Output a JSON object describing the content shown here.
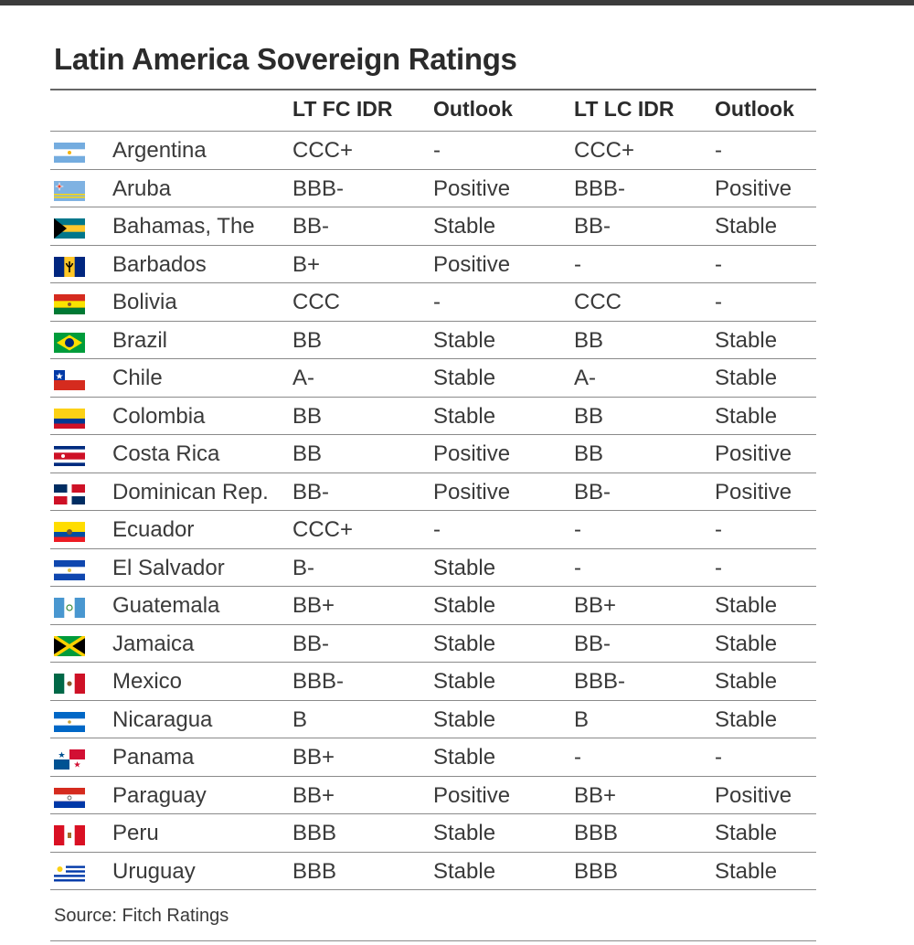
{
  "title": "Latin America Sovereign Ratings",
  "headers": [
    "LT FC IDR",
    "Outlook",
    "LT LC IDR",
    "Outlook"
  ],
  "rows": [
    {
      "flag": "argentina-flag-icon",
      "country": "Argentina",
      "fc": "CCC+",
      "fc_outlook": "-",
      "lc": "CCC+",
      "lc_outlook": "-"
    },
    {
      "flag": "aruba-flag-icon",
      "country": "Aruba",
      "fc": "BBB-",
      "fc_outlook": "Positive",
      "lc": "BBB-",
      "lc_outlook": "Positive"
    },
    {
      "flag": "bahamas-flag-icon",
      "country": "Bahamas, The",
      "fc": "BB-",
      "fc_outlook": "Stable",
      "lc": "BB-",
      "lc_outlook": "Stable"
    },
    {
      "flag": "barbados-flag-icon",
      "country": "Barbados",
      "fc": "B+",
      "fc_outlook": "Positive",
      "lc": "-",
      "lc_outlook": "-"
    },
    {
      "flag": "bolivia-flag-icon",
      "country": "Bolivia",
      "fc": "CCC",
      "fc_outlook": "-",
      "lc": "CCC",
      "lc_outlook": "-"
    },
    {
      "flag": "brazil-flag-icon",
      "country": "Brazil",
      "fc": "BB",
      "fc_outlook": "Stable",
      "lc": "BB",
      "lc_outlook": "Stable"
    },
    {
      "flag": "chile-flag-icon",
      "country": "Chile",
      "fc": "A-",
      "fc_outlook": "Stable",
      "lc": "A-",
      "lc_outlook": "Stable"
    },
    {
      "flag": "colombia-flag-icon",
      "country": "Colombia",
      "fc": "BB",
      "fc_outlook": "Stable",
      "lc": "BB",
      "lc_outlook": "Stable"
    },
    {
      "flag": "costa-rica-flag-icon",
      "country": "Costa Rica",
      "fc": "BB",
      "fc_outlook": "Positive",
      "lc": "BB",
      "lc_outlook": "Positive"
    },
    {
      "flag": "dominican-rep-flag-icon",
      "country": "Dominican Rep.",
      "fc": "BB-",
      "fc_outlook": "Positive",
      "lc": "BB-",
      "lc_outlook": "Positive"
    },
    {
      "flag": "ecuador-flag-icon",
      "country": "Ecuador",
      "fc": "CCC+",
      "fc_outlook": "-",
      "lc": "-",
      "lc_outlook": "-"
    },
    {
      "flag": "el-salvador-flag-icon",
      "country": "El Salvador",
      "fc": "B-",
      "fc_outlook": "Stable",
      "lc": "-",
      "lc_outlook": "-"
    },
    {
      "flag": "guatemala-flag-icon",
      "country": "Guatemala",
      "fc": "BB+",
      "fc_outlook": "Stable",
      "lc": "BB+",
      "lc_outlook": "Stable"
    },
    {
      "flag": "jamaica-flag-icon",
      "country": "Jamaica",
      "fc": "BB-",
      "fc_outlook": "Stable",
      "lc": "BB-",
      "lc_outlook": "Stable"
    },
    {
      "flag": "mexico-flag-icon",
      "country": "Mexico",
      "fc": "BBB-",
      "fc_outlook": "Stable",
      "lc": "BBB-",
      "lc_outlook": "Stable"
    },
    {
      "flag": "nicaragua-flag-icon",
      "country": "Nicaragua",
      "fc": "B",
      "fc_outlook": "Stable",
      "lc": "B",
      "lc_outlook": "Stable"
    },
    {
      "flag": "panama-flag-icon",
      "country": "Panama",
      "fc": "BB+",
      "fc_outlook": "Stable",
      "lc": "-",
      "lc_outlook": "-"
    },
    {
      "flag": "paraguay-flag-icon",
      "country": "Paraguay",
      "fc": "BB+",
      "fc_outlook": "Positive",
      "lc": "BB+",
      "lc_outlook": "Positive"
    },
    {
      "flag": "peru-flag-icon",
      "country": "Peru",
      "fc": "BBB",
      "fc_outlook": "Stable",
      "lc": "BBB",
      "lc_outlook": "Stable"
    },
    {
      "flag": "uruguay-flag-icon",
      "country": "Uruguay",
      "fc": "BBB",
      "fc_outlook": "Stable",
      "lc": "BBB",
      "lc_outlook": "Stable"
    }
  ],
  "source": "Source: Fitch Ratings"
}
